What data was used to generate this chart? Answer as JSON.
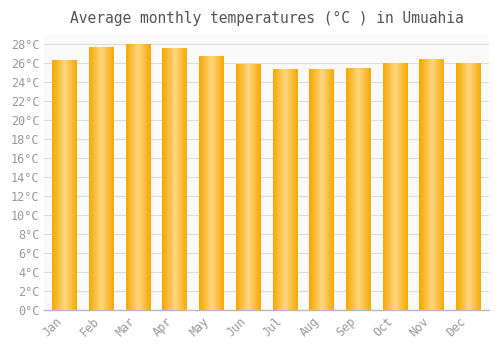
{
  "title": "Average monthly temperatures (°C ) in Umuahia",
  "months": [
    "Jan",
    "Feb",
    "Mar",
    "Apr",
    "May",
    "Jun",
    "Jul",
    "Aug",
    "Sep",
    "Oct",
    "Nov",
    "Dec"
  ],
  "values": [
    26.3,
    27.7,
    28.0,
    27.5,
    26.7,
    25.9,
    25.3,
    25.3,
    25.4,
    26.0,
    26.4,
    26.0
  ],
  "bar_color_center": "#FFD580",
  "bar_color_edge": "#F5A800",
  "background_color": "#FFFFFF",
  "plot_bg_color": "#FAFAFA",
  "grid_color": "#DDDDDD",
  "tick_color": "#999999",
  "title_color": "#555555",
  "spine_color": "#BBBBBB",
  "ylim": [
    0,
    29
  ],
  "ytick_step": 2,
  "title_fontsize": 10.5,
  "tick_fontsize": 8.5,
  "bar_width": 0.68
}
